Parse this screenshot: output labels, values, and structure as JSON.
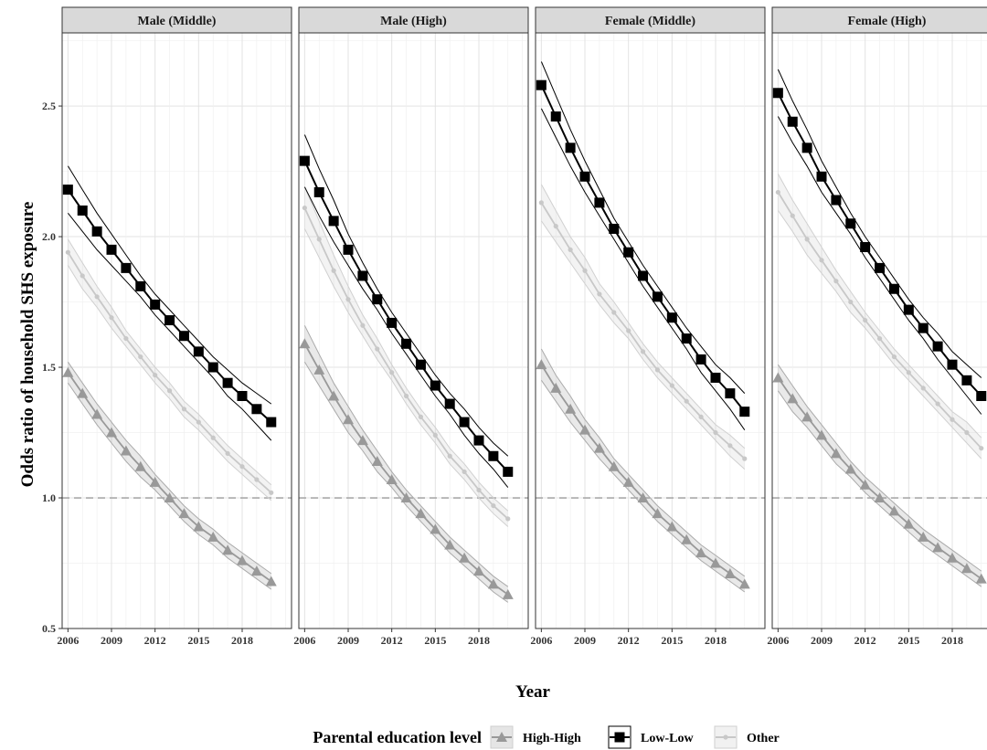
{
  "chart_data": {
    "type": "line",
    "xlabel": "Year",
    "ylabel": "Odds ratio of household SHS exposure",
    "x_ticks": [
      "2006",
      "2009",
      "2012",
      "2015",
      "2018"
    ],
    "y_ticks": [
      "0.5",
      "1.0",
      "1.5",
      "2.0",
      "2.5"
    ],
    "xlim": [
      2005.6,
      2021.4
    ],
    "ylim": [
      0.5,
      2.78
    ],
    "reference_line": 1.0,
    "grid": true,
    "legend": {
      "title": "Parental education level",
      "position": "bottom",
      "items": [
        "High-High",
        "Low-Low",
        "Other"
      ]
    },
    "colors": {
      "High-High": "#999999",
      "Low-Low": "#000000",
      "Other": "#c8c8c8"
    },
    "panels": [
      {
        "label": "Male (Middle)",
        "x": [
          2006,
          2007,
          2008,
          2009,
          2010,
          2011,
          2012,
          2013,
          2014,
          2015,
          2016,
          2017,
          2018,
          2019,
          2020
        ],
        "series": [
          {
            "name": "High-High",
            "values": [
              1.48,
              1.4,
              1.32,
              1.25,
              1.18,
              1.12,
              1.06,
              1.0,
              0.94,
              0.89,
              0.85,
              0.8,
              0.76,
              0.72,
              0.68
            ],
            "band": [
              0.04,
              0.04,
              0.04,
              0.04,
              0.04,
              0.04,
              0.03,
              0.03,
              0.03,
              0.03,
              0.03,
              0.03,
              0.03,
              0.03,
              0.03
            ]
          },
          {
            "name": "Low-Low",
            "values": [
              2.18,
              2.1,
              2.02,
              1.95,
              1.88,
              1.81,
              1.74,
              1.68,
              1.62,
              1.56,
              1.5,
              1.44,
              1.39,
              1.34,
              1.29
            ],
            "band": [
              0.09,
              0.08,
              0.07,
              0.06,
              0.05,
              0.04,
              0.04,
              0.04,
              0.04,
              0.04,
              0.04,
              0.05,
              0.05,
              0.06,
              0.07
            ]
          },
          {
            "name": "Other",
            "values": [
              1.94,
              1.85,
              1.77,
              1.69,
              1.61,
              1.54,
              1.47,
              1.41,
              1.34,
              1.29,
              1.23,
              1.17,
              1.12,
              1.07,
              1.02
            ],
            "band": [
              0.05,
              0.05,
              0.04,
              0.04,
              0.03,
              0.03,
              0.03,
              0.03,
              0.03,
              0.03,
              0.03,
              0.03,
              0.03,
              0.03,
              0.03
            ]
          }
        ]
      },
      {
        "label": "Male (High)",
        "x": [
          2006,
          2007,
          2008,
          2009,
          2010,
          2011,
          2012,
          2013,
          2014,
          2015,
          2016,
          2017,
          2018,
          2019,
          2020
        ],
        "series": [
          {
            "name": "High-High",
            "values": [
              1.59,
              1.49,
              1.39,
              1.3,
              1.22,
              1.14,
              1.07,
              1.0,
              0.94,
              0.88,
              0.82,
              0.77,
              0.72,
              0.67,
              0.63
            ],
            "band": [
              0.07,
              0.06,
              0.05,
              0.05,
              0.04,
              0.04,
              0.03,
              0.03,
              0.03,
              0.03,
              0.03,
              0.03,
              0.03,
              0.03,
              0.03
            ]
          },
          {
            "name": "Low-Low",
            "values": [
              2.29,
              2.17,
              2.06,
              1.95,
              1.85,
              1.76,
              1.67,
              1.59,
              1.51,
              1.43,
              1.36,
              1.29,
              1.22,
              1.16,
              1.1
            ],
            "band": [
              0.1,
              0.09,
              0.08,
              0.06,
              0.05,
              0.04,
              0.04,
              0.04,
              0.04,
              0.04,
              0.04,
              0.05,
              0.05,
              0.05,
              0.06
            ]
          },
          {
            "name": "Other",
            "values": [
              2.11,
              1.99,
              1.87,
              1.76,
              1.66,
              1.57,
              1.48,
              1.39,
              1.31,
              1.24,
              1.16,
              1.1,
              1.03,
              0.97,
              0.92
            ],
            "band": [
              0.08,
              0.07,
              0.06,
              0.05,
              0.04,
              0.04,
              0.03,
              0.03,
              0.03,
              0.03,
              0.03,
              0.03,
              0.03,
              0.03,
              0.03
            ]
          }
        ]
      },
      {
        "label": "Female (Middle)",
        "x": [
          2006,
          2007,
          2008,
          2009,
          2010,
          2011,
          2012,
          2013,
          2014,
          2015,
          2016,
          2017,
          2018,
          2019,
          2020
        ],
        "series": [
          {
            "name": "High-High",
            "values": [
              1.51,
              1.42,
              1.34,
              1.26,
              1.19,
              1.12,
              1.06,
              1.0,
              0.94,
              0.89,
              0.84,
              0.79,
              0.75,
              0.71,
              0.67
            ],
            "band": [
              0.06,
              0.05,
              0.05,
              0.04,
              0.04,
              0.03,
              0.03,
              0.03,
              0.03,
              0.03,
              0.03,
              0.03,
              0.03,
              0.03,
              0.03
            ]
          },
          {
            "name": "Low-Low",
            "values": [
              2.58,
              2.46,
              2.34,
              2.23,
              2.13,
              2.03,
              1.94,
              1.85,
              1.77,
              1.69,
              1.61,
              1.53,
              1.46,
              1.4,
              1.33
            ],
            "band": [
              0.09,
              0.08,
              0.07,
              0.06,
              0.05,
              0.04,
              0.04,
              0.04,
              0.04,
              0.04,
              0.04,
              0.05,
              0.05,
              0.06,
              0.07
            ]
          },
          {
            "name": "Other",
            "values": [
              2.13,
              2.04,
              1.95,
              1.87,
              1.78,
              1.71,
              1.64,
              1.56,
              1.49,
              1.43,
              1.37,
              1.31,
              1.25,
              1.2,
              1.15
            ],
            "band": [
              0.07,
              0.06,
              0.05,
              0.05,
              0.04,
              0.04,
              0.03,
              0.03,
              0.03,
              0.03,
              0.03,
              0.03,
              0.03,
              0.04,
              0.04
            ]
          }
        ]
      },
      {
        "label": "Female (High)",
        "x": [
          2006,
          2007,
          2008,
          2009,
          2010,
          2011,
          2012,
          2013,
          2014,
          2015,
          2016,
          2017,
          2018,
          2019,
          2020
        ],
        "series": [
          {
            "name": "High-High",
            "values": [
              1.46,
              1.38,
              1.31,
              1.24,
              1.17,
              1.11,
              1.05,
              1.0,
              0.95,
              0.9,
              0.85,
              0.81,
              0.77,
              0.73,
              0.69
            ],
            "band": [
              0.05,
              0.05,
              0.04,
              0.04,
              0.04,
              0.03,
              0.03,
              0.03,
              0.03,
              0.03,
              0.03,
              0.03,
              0.03,
              0.03,
              0.03
            ]
          },
          {
            "name": "Low-Low",
            "values": [
              2.55,
              2.44,
              2.34,
              2.23,
              2.14,
              2.05,
              1.96,
              1.88,
              1.8,
              1.72,
              1.65,
              1.58,
              1.51,
              1.45,
              1.39
            ],
            "band": [
              0.09,
              0.08,
              0.07,
              0.06,
              0.05,
              0.04,
              0.04,
              0.04,
              0.04,
              0.04,
              0.04,
              0.05,
              0.05,
              0.06,
              0.07
            ]
          },
          {
            "name": "Other",
            "values": [
              2.17,
              2.08,
              1.99,
              1.91,
              1.83,
              1.75,
              1.68,
              1.61,
              1.54,
              1.48,
              1.42,
              1.36,
              1.3,
              1.25,
              1.19
            ],
            "band": [
              0.07,
              0.06,
              0.06,
              0.05,
              0.04,
              0.04,
              0.03,
              0.03,
              0.03,
              0.03,
              0.03,
              0.03,
              0.03,
              0.04,
              0.04
            ]
          }
        ]
      }
    ]
  }
}
